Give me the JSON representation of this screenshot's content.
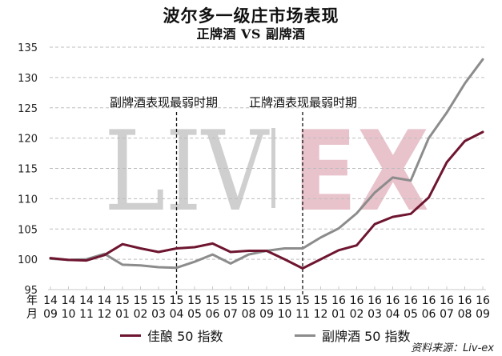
{
  "header": {
    "title": "波尔多一级庄市场表现",
    "subtitle": "正牌酒 VS 副牌酒"
  },
  "annotations": {
    "left_period": "副牌酒表现最弱时期",
    "right_period": "正牌酒表现最弱时期"
  },
  "watermark": {
    "left": "LIV",
    "right": "EX"
  },
  "axis": {
    "x_row1_label": "年",
    "x_row2_label": "月"
  },
  "legend": {
    "series1": "佳酿 50 指数",
    "series2": "副牌酒 50 指数"
  },
  "source": "资料来源：Liv-ex",
  "colors": {
    "series1": "#6e1530",
    "series2": "#8c8c8c",
    "watermark_gray": "#cfcfcf",
    "watermark_pink": "#e8c3cc",
    "grid": "#bdbdbd"
  },
  "chart_data": {
    "type": "line",
    "title": "波尔多一级庄市场表现",
    "subtitle": "正牌酒 VS 副牌酒",
    "xlabel": "年 / 月",
    "ylabel": "",
    "ylim": [
      95,
      135
    ],
    "yticks": [
      95,
      100,
      105,
      110,
      115,
      120,
      125,
      130,
      135
    ],
    "grid": "horizontal dashed",
    "legend_position": "bottom",
    "categories": [
      "14/09",
      "14/10",
      "14/11",
      "14/12",
      "15/01",
      "15/02",
      "15/03",
      "15/04",
      "15/05",
      "15/06",
      "15/07",
      "15/08",
      "15/09",
      "15/10",
      "15/11",
      "15/12",
      "16/01",
      "16/02",
      "16/03",
      "16/04",
      "16/05",
      "16/06",
      "16/07",
      "16/08",
      "16/09"
    ],
    "x_year_labels": [
      "14",
      "14",
      "14",
      "14",
      "15",
      "15",
      "15",
      "15",
      "15",
      "15",
      "15",
      "15",
      "15",
      "15",
      "15",
      "15",
      "16",
      "16",
      "16",
      "16",
      "16",
      "16",
      "16",
      "16",
      "16"
    ],
    "x_month_labels": [
      "09",
      "10",
      "11",
      "12",
      "01",
      "02",
      "03",
      "04",
      "05",
      "06",
      "07",
      "08",
      "09",
      "10",
      "11",
      "12",
      "01",
      "02",
      "03",
      "04",
      "05",
      "06",
      "07",
      "08",
      "09"
    ],
    "series": [
      {
        "name": "佳酿 50 指数",
        "color": "#6e1530",
        "values": [
          100.2,
          99.9,
          99.8,
          100.7,
          102.5,
          101.8,
          101.2,
          101.8,
          102.0,
          102.6,
          101.2,
          101.4,
          101.4,
          100.0,
          98.5,
          100.0,
          101.5,
          102.3,
          105.8,
          107.0,
          107.5,
          110.2,
          116.0,
          119.5,
          121.0
        ]
      },
      {
        "name": "副牌酒 50 指数",
        "color": "#8c8c8c",
        "values": [
          100.1,
          99.9,
          100.0,
          100.9,
          99.1,
          99.0,
          98.7,
          98.6,
          99.6,
          100.8,
          99.3,
          100.8,
          101.4,
          101.8,
          101.8,
          103.6,
          105.1,
          107.6,
          111.0,
          113.5,
          113.0,
          120.0,
          124.2,
          129.0,
          133.0
        ]
      }
    ],
    "vertical_markers": [
      {
        "at": "15/04",
        "label": "副牌酒表现最弱时期",
        "style": "dashed"
      },
      {
        "at": "15/11",
        "label": "正牌酒表现最弱时期",
        "style": "dashed"
      }
    ],
    "source": "资料来源：Liv-ex"
  }
}
